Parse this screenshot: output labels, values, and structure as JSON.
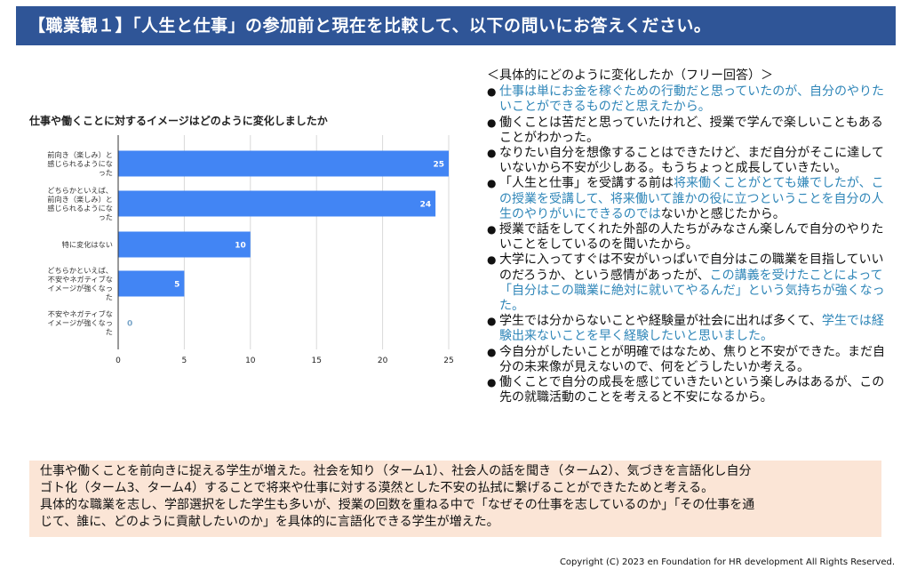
{
  "header": {
    "title": "【職業観１】「人生と仕事」の参加前と現在を比較して、以下の問いにお答えください。",
    "background_color": "#2f5597"
  },
  "chart_data": {
    "type": "bar",
    "orientation": "horizontal",
    "title": "仕事や働くことに対するイメージはどのように変化しましたか",
    "categories": [
      [
        "前向き（楽しみ）と",
        "感じられるようにな",
        "った"
      ],
      [
        "どちらかといえば、",
        "前向き（楽しみ）と",
        "感じられるようにな",
        "った"
      ],
      [
        "特に変化はない"
      ],
      [
        "どちらかといえば、",
        "不安やネガティブな",
        "イメージが強くなっ",
        "た"
      ],
      [
        "不安やネガティブな",
        "イメージが強くなっ",
        "た"
      ]
    ],
    "values": [
      25,
      24,
      10,
      5,
      0
    ],
    "data_labels": [
      "25",
      "24",
      "10",
      "5",
      "0"
    ],
    "xlim": [
      0,
      25
    ],
    "xticks": [
      0,
      5,
      10,
      15,
      20,
      25
    ],
    "xlabel": "",
    "ylabel": "",
    "grid": true,
    "legend": "none",
    "bar_color": "#4285f4"
  },
  "answers": {
    "heading": "＜具体的にどのように変化したか（フリー回答）＞",
    "bullet": "●",
    "items": [
      {
        "segments": [
          {
            "text": "仕事は単にお金を稼ぐための行動だと思っていたのが、自分のやりたいことができるものだと思えたから。",
            "highlight": true
          }
        ]
      },
      {
        "segments": [
          {
            "text": "働くことは苦だと思っていたけれど、授業で学んで楽しいこともあることがわかった。",
            "highlight": false
          }
        ]
      },
      {
        "segments": [
          {
            "text": "なりたい自分を想像することはできたけど、まだ自分がそこに達していないから不安が少しある。もうちょっと成長していきたい。",
            "highlight": false
          }
        ]
      },
      {
        "segments": [
          {
            "text": "「人生と仕事」を受講する前は",
            "highlight": false
          },
          {
            "text": "将来働くことがとても嫌でしたが、この授業を受講して、将来働いて誰かの役に立つということを自分の人生のやりがいにできるのでは",
            "highlight": true
          },
          {
            "text": "ないかと感じたから。",
            "highlight": false
          }
        ]
      },
      {
        "segments": [
          {
            "text": "授業で話をしてくれた外部の人たちがみなさん楽しんで自分のやりたいことをしているのを聞いたから。",
            "highlight": false
          }
        ]
      },
      {
        "segments": [
          {
            "text": "大学に入ってすぐは不安がいっぱいで自分はこの職業を目指していいのだろうか、という感情があったが、",
            "highlight": false
          },
          {
            "text": "この講義を受けたことによって「自分はこの職業に絶対に就いてやるんだ」という気持ちが強くなった。",
            "highlight": true
          }
        ]
      },
      {
        "segments": [
          {
            "text": "学生では分からないことや経験量が社会に出れば多くて、",
            "highlight": false
          },
          {
            "text": "学生では経験出来ないことを早く経験したいと思いました。",
            "highlight": true
          }
        ]
      },
      {
        "segments": [
          {
            "text": "今自分がしたいことが明確ではなため、焦りと不安ができた。まだ自分の未来像が見えないので、何をどうしたいか考える。",
            "highlight": false
          }
        ]
      },
      {
        "segments": [
          {
            "text": "働くことで自分の成長を感じていきたいという楽しみはあるが、この先の就職活動のことを考えると不安になるから。",
            "highlight": false
          }
        ]
      }
    ],
    "highlight_color": "#2f86b8"
  },
  "summary": {
    "lines": [
      "仕事や働くことを前向きに捉える学生が増えた。社会を知り（ターム1）、社会人の話を聞き（ターム2）、気づきを言語化し自分",
      "ゴト化（ターム3、ターム4）することで将来や仕事に対する漠然とした不安の払拭に繋げることができたためと考える。",
      "具体的な職業を志し、学部選択をした学生も多いが、授業の回数を重ねる中で「なぜその仕事を志しているのか」「その仕事を通",
      "じて、誰に、どのように貢献したいのか」を具体的に言語化できる学生が増えた。"
    ],
    "background_color": "#fbe5d6"
  },
  "footer": {
    "copyright": "Copyright (C) 2023  en Foundation for HR development  All Rights Reserved."
  }
}
